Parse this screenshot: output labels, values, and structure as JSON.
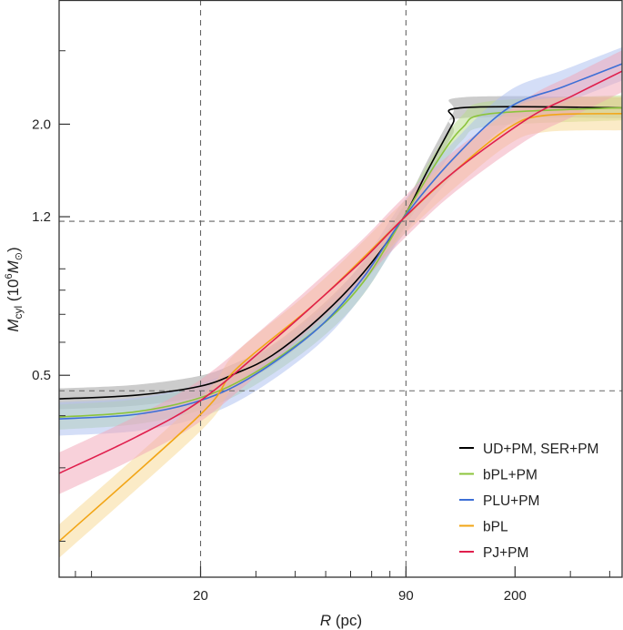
{
  "chart_data": {
    "type": "line",
    "title": "",
    "x_scale": "log",
    "y_scale": "log",
    "xlim": [
      7.1,
      438
    ],
    "ylim": [
      0.164,
      3.97
    ],
    "xlabel": {
      "var": "R",
      "unit": " (pc)"
    },
    "ylabel": {
      "var": "M",
      "sub": "cyl",
      "pre": " (10",
      "sup": "6",
      "var2": "M",
      "sub2": "⊙",
      "post": ")"
    },
    "x_ticks": [
      {
        "value": 20,
        "label": "20"
      },
      {
        "value": 90,
        "label": "90"
      },
      {
        "value": 200,
        "label": "200"
      }
    ],
    "x_minor_ticks": [
      8,
      9,
      30,
      40,
      50,
      60,
      70,
      80,
      300,
      400
    ],
    "y_ticks": [
      {
        "value": 2.0,
        "label": "2.0"
      },
      {
        "value": 1.2,
        "label": "1.2"
      },
      {
        "value": 0.5,
        "label": "0.5"
      }
    ],
    "y_minor_ticks": [
      3.0,
      0.9,
      0.8,
      0.7,
      0.6,
      0.4,
      0.3,
      0.2
    ],
    "reference_lines": {
      "vertical": [
        20,
        90
      ],
      "horizontal": [
        1.17,
        0.459
      ]
    },
    "grid": false,
    "legend_position": "bottom-right",
    "series": [
      {
        "name": "UD+PM, SER+PM",
        "color": "#000000",
        "band_color": "#9a9a9a",
        "band_dex": 0.025,
        "x": [
          7.1,
          12.5,
          20,
          26,
          33.8,
          47.5,
          65.8,
          87.5,
          104.6,
          127,
          136,
          438
        ],
        "y": [
          0.439,
          0.448,
          0.471,
          0.506,
          0.558,
          0.684,
          0.88,
          1.18,
          1.53,
          2.01,
          2.19,
          2.19
        ]
      },
      {
        "name": "bPL+PM",
        "color": "#8cc43c",
        "band_color": "#b7dc8a",
        "band_dex": 0.03,
        "x": [
          7.1,
          12.5,
          20,
          29.6,
          47.5,
          65.8,
          87.5,
          112,
          136,
          167,
          438
        ],
        "y": [
          0.397,
          0.409,
          0.442,
          0.506,
          0.65,
          0.836,
          1.18,
          1.61,
          1.96,
          2.12,
          2.19
        ]
      },
      {
        "name": "PLU+PM",
        "color": "#3d6fd6",
        "band_color": "#a9bdf0",
        "band_dex": 0.04,
        "x": [
          7.1,
          12.5,
          20,
          29.6,
          47.5,
          65.8,
          87.5,
          127,
          191,
          285,
          438
        ],
        "y": [
          0.393,
          0.403,
          0.435,
          0.5,
          0.65,
          0.857,
          1.18,
          1.65,
          2.19,
          2.46,
          2.79
        ]
      },
      {
        "name": "bPL",
        "color": "#f2a516",
        "band_color": "#f8d78f",
        "band_dex": 0.04,
        "x": [
          7.1,
          20,
          26,
          47.5,
          87.5,
          127,
          191,
          250,
          438
        ],
        "y": [
          0.2,
          0.403,
          0.518,
          0.756,
          1.18,
          1.53,
          1.96,
          2.1,
          2.12
        ]
      },
      {
        "name": "PJ+PM",
        "color": "#e01f4d",
        "band_color": "#f2a3b6",
        "band_dex": 0.05,
        "x": [
          7.1,
          12.5,
          20,
          33.8,
          47.5,
          65.8,
          87.5,
          127,
          219,
          305,
          438
        ],
        "y": [
          0.291,
          0.356,
          0.435,
          0.603,
          0.756,
          0.947,
          1.18,
          1.53,
          2.06,
          2.34,
          2.68
        ]
      }
    ]
  }
}
